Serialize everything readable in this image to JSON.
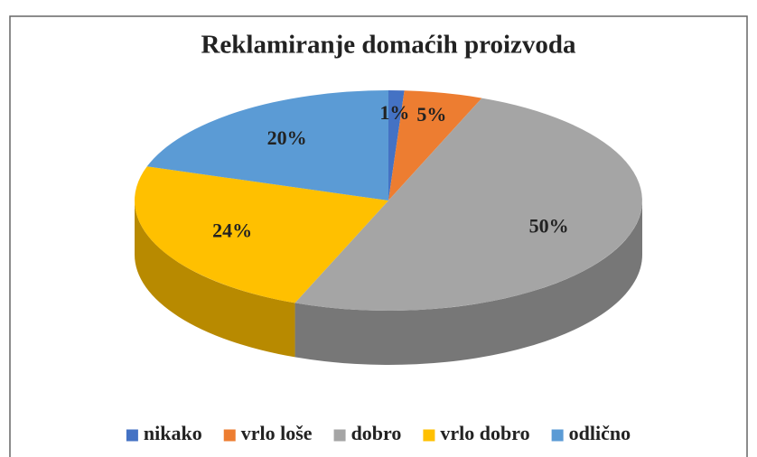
{
  "chart_data": {
    "type": "pie3d",
    "title": "Reklamiranje domaćih proizvoda",
    "categories": [
      "nikako",
      "vrlo loše",
      "dobro",
      "vrlo dobro",
      "odlično"
    ],
    "values": [
      1,
      5,
      50,
      24,
      20
    ],
    "value_labels": [
      "1%",
      "5%",
      "50%",
      "24%",
      "20%"
    ],
    "colors": [
      "#4472c4",
      "#ed7d31",
      "#a5a5a5",
      "#ffc000",
      "#5b9bd5"
    ],
    "legend": "bottom"
  }
}
